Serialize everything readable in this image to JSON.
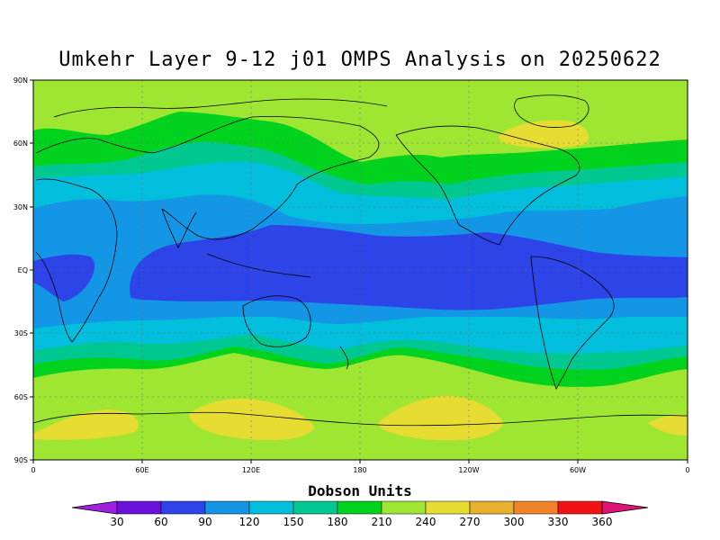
{
  "title": "Umkehr Layer 9-12 j01 OMPS Analysis on 20250622",
  "lat_labels": [
    "90N",
    "60N",
    "30N",
    "EQ",
    "30S",
    "60S",
    "90S"
  ],
  "lon_labels": [
    "0",
    "60E",
    "120E",
    "180",
    "120W",
    "60W",
    "0"
  ],
  "colorbar": {
    "title": "Dobson Units",
    "values": [
      "30",
      "60",
      "90",
      "120",
      "150",
      "180",
      "210",
      "240",
      "270",
      "300",
      "330",
      "360"
    ],
    "colors": [
      "#a020e0",
      "#6a10d8",
      "#2c44e8",
      "#1496e6",
      "#00bedc",
      "#00c890",
      "#00d21e",
      "#9ee632",
      "#e6dc32",
      "#e6af2d",
      "#f08228",
      "#f01414",
      "#e01478"
    ]
  },
  "map_colors": {
    "c240": "#9ee632",
    "c210": "#00d21e",
    "c180": "#00c890",
    "c150": "#00bedc",
    "c120": "#1496e6",
    "c90": "#2c44e8",
    "c270": "#e6dc32"
  }
}
